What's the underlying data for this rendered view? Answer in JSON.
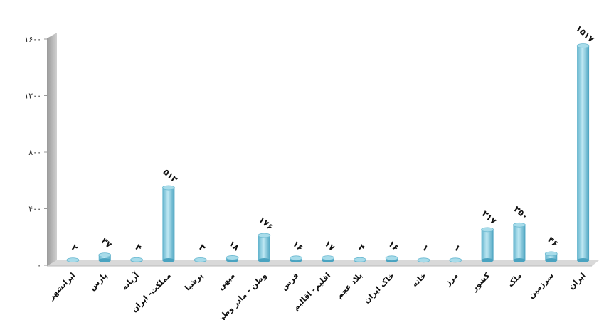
{
  "chart_data": {
    "type": "bar",
    "title": "",
    "xlabel": "",
    "ylabel": "",
    "ylim": [
      0,
      1600
    ],
    "yticks": [
      0,
      400,
      800,
      1200,
      1600
    ],
    "ytick_labels": [
      "۰",
      "۴۰۰",
      "۸۰۰",
      "۱۲۰۰",
      "۱۶۰۰"
    ],
    "grid": false,
    "bar_color": "#8ecfe0",
    "categories": [
      "ایرانشهر",
      "پارس",
      "آریانه",
      "مملکت- ایران",
      "پرشیا",
      "میهن",
      "وطن - مادر وطن",
      "فرس",
      "اقلیم- اقالیم",
      "بلاد عجم",
      "خاک ایران",
      "خانه",
      "مرز",
      "کشور",
      "ملک",
      "سرزمین",
      "ایران"
    ],
    "values": [
      2,
      37,
      4,
      513,
      3,
      18,
      176,
      16,
      17,
      4,
      16,
      1,
      1,
      217,
      250,
      46,
      1517
    ],
    "value_labels": [
      "۲",
      "۳۷",
      "۴",
      "۵۱۳",
      "۳",
      "۱۸",
      "۱۷۶",
      "۱۶",
      "۱۷",
      "۴",
      "۱۶",
      "۱",
      "۱",
      "۲۱۷",
      "۲۵۰",
      "۴۶",
      "۱۵۱۷"
    ]
  }
}
